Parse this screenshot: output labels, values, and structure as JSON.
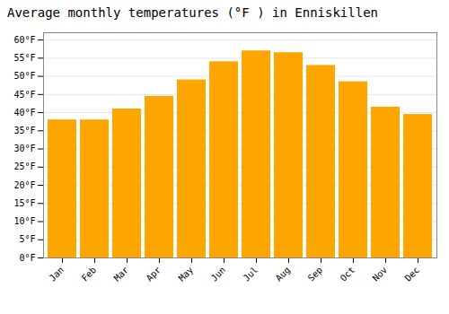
{
  "chart_data": {
    "type": "bar",
    "title": "Average monthly temperatures (°F ) in Enniskillen",
    "categories": [
      "Jan",
      "Feb",
      "Mar",
      "Apr",
      "May",
      "Jun",
      "Jul",
      "Aug",
      "Sep",
      "Oct",
      "Nov",
      "Dec"
    ],
    "values": [
      38.0,
      38.0,
      41.0,
      44.5,
      49.0,
      54.0,
      57.0,
      56.5,
      53.0,
      48.5,
      41.5,
      39.5
    ],
    "color": "#FFA500",
    "ylim": [
      0,
      62
    ],
    "yticks": [
      {
        "value": 0,
        "label": "0°F"
      },
      {
        "value": 5,
        "label": "5°F"
      },
      {
        "value": 10,
        "label": "10°F"
      },
      {
        "value": 15,
        "label": "15°F"
      },
      {
        "value": 20,
        "label": "20°F"
      },
      {
        "value": 25,
        "label": "25°F"
      },
      {
        "value": 30,
        "label": "30°F"
      },
      {
        "value": 35,
        "label": "35°F"
      },
      {
        "value": 40,
        "label": "40°F"
      },
      {
        "value": 45,
        "label": "45°F"
      },
      {
        "value": 50,
        "label": "50°F"
      },
      {
        "value": 55,
        "label": "55°F"
      },
      {
        "value": 60,
        "label": "60°F"
      }
    ],
    "grid": true
  }
}
